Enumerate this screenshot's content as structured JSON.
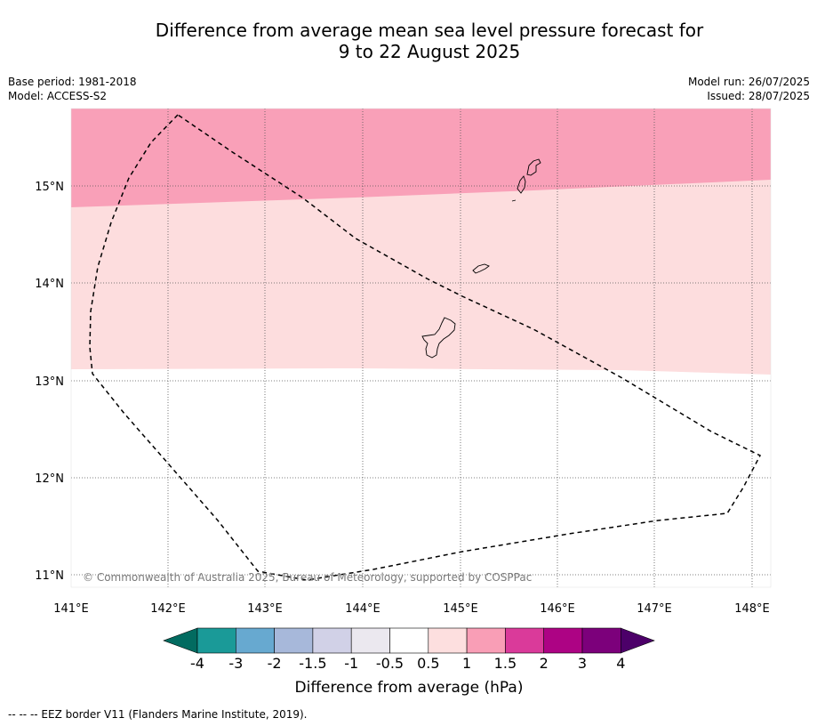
{
  "title": {
    "line1": "Difference from average mean sea level pressure forecast for",
    "line2": "9 to 22 August 2025"
  },
  "meta": {
    "base_period": "Base period: 1981-2018",
    "model": "Model: ACCESS-S2",
    "model_run": "Model run: 26/07/2025",
    "issued": "Issued: 28/07/2025"
  },
  "map": {
    "lat_labels": [
      "15°N",
      "14°N",
      "13°N",
      "12°N",
      "11°N"
    ],
    "lon_labels": [
      "141°E",
      "142°E",
      "143°E",
      "144°E",
      "145°E",
      "146°E",
      "147°E",
      "148°E"
    ],
    "copyright": "© Commonwealth of Australia 2025, Bureau of Meteorology, supported by COSPPac",
    "zones": [
      {
        "name": "1 to 1.5 hPa",
        "color": "#f9a0b8"
      },
      {
        "name": "0.5 to 1 hPa",
        "color": "#fdddde"
      },
      {
        "name": "-0.5 to 0.5 hPa",
        "color": "#ffffff"
      }
    ]
  },
  "colorbar": {
    "title": "Difference from average (hPa)",
    "labels": [
      "-4",
      "-3",
      "-2",
      "-1.5",
      "-1",
      "-0.5",
      "0.5",
      "1",
      "1.5",
      "2",
      "3",
      "4"
    ],
    "colors": [
      "#026b60",
      "#1a9a98",
      "#67a9d0",
      "#a7b8da",
      "#d1d1e7",
      "#ebe8ef",
      "#ffffff",
      "#fddfdf",
      "#f99eb6",
      "#da3a9a",
      "#ad0384",
      "#7c007b",
      "#4c0069"
    ]
  },
  "footnote": "--  --  -- EEZ border V11 (Flanders Marine Institute, 2019)."
}
